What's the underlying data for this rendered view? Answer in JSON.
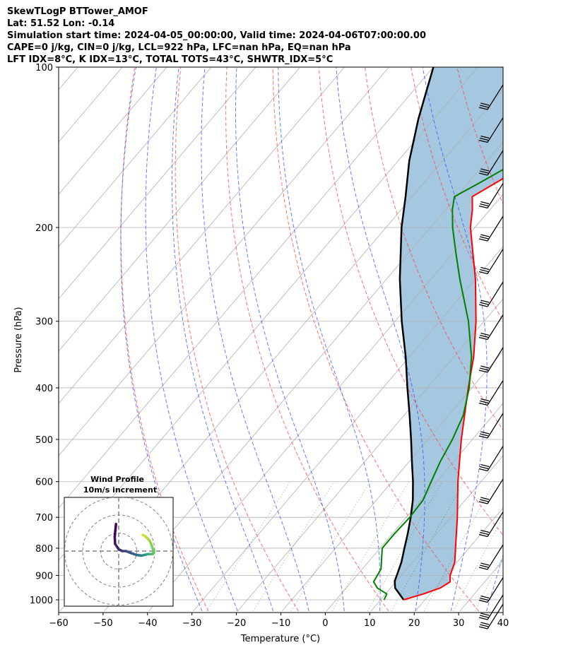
{
  "header": {
    "line1": "SkewTLogP BTTower_AMOF",
    "line2": "Lat: 51.52   Lon: -0.14",
    "line3": "Simulation start time: 2024-04-05_00:00:00, Valid time: 2024-04-06T07:00:00.00",
    "line4": "CAPE=0 j/kg, CIN=0 j/kg, LCL=922 hPa, LFC=nan hPa, EQ=nan hPa",
    "line5": "LFT IDX=8°C, K IDX=13°C, TOTAL TOTS=43°C, SHWTR_IDX=5°C"
  },
  "chart_data": [
    {
      "type": "line",
      "subtype": "skew-T log-P",
      "xlabel": "Temperature (°C)",
      "ylabel": "Pressure (hPa)",
      "x_ticks": [
        -60,
        -50,
        -40,
        -30,
        -20,
        -10,
        0,
        10,
        20,
        30,
        40
      ],
      "y_ticks": [
        100,
        200,
        300,
        400,
        500,
        600,
        700,
        800,
        900,
        1000
      ],
      "xlim": [
        -60,
        40
      ],
      "ylim": [
        1050,
        100
      ],
      "y_scale": "log",
      "grid": true,
      "series": [
        {
          "role": "temperature",
          "color": "#ff0000",
          "points": [
            [
              1000,
              15.2
            ],
            [
              975,
              18.5
            ],
            [
              950,
              21.2
            ],
            [
              925,
              22.2
            ],
            [
              900,
              21.0
            ],
            [
              850,
              19.5
            ],
            [
              800,
              17.0
            ],
            [
              700,
              11.5
            ],
            [
              600,
              4.8
            ],
            [
              500,
              -2.5
            ],
            [
              400,
              -10.8
            ],
            [
              350,
              -15.5
            ],
            [
              300,
              -21.8
            ],
            [
              250,
              -30.0
            ],
            [
              200,
              -41.0
            ],
            [
              185,
              -44.0
            ],
            [
              175,
              -46.5
            ],
            [
              160,
              -42.5
            ],
            [
              150,
              -40.2
            ],
            [
              140,
              -38.5
            ],
            [
              130,
              -37.0
            ],
            [
              125,
              -35.8
            ],
            [
              120,
              -34.0
            ],
            [
              110,
              -30.5
            ],
            [
              100,
              -27.3
            ]
          ]
        },
        {
          "role": "dewpoint",
          "color": "#008000",
          "points": [
            [
              1000,
              10.8
            ],
            [
              975,
              10.3
            ],
            [
              950,
              7.0
            ],
            [
              925,
              5.0
            ],
            [
              900,
              4.6
            ],
            [
              875,
              4.2
            ],
            [
              850,
              3.0
            ],
            [
              800,
              0.5
            ],
            [
              750,
              0.5
            ],
            [
              700,
              0.8
            ],
            [
              650,
              0.5
            ],
            [
              600,
              -1.2
            ],
            [
              550,
              -3.0
            ],
            [
              500,
              -4.5
            ],
            [
              450,
              -6.7
            ],
            [
              400,
              -10.6
            ],
            [
              350,
              -16.0
            ],
            [
              300,
              -23.5
            ],
            [
              250,
              -33.5
            ],
            [
              225,
              -39.0
            ],
            [
              200,
              -45.0
            ],
            [
              185,
              -48.5
            ],
            [
              175,
              -50.5
            ],
            [
              165,
              -47.5
            ],
            [
              155,
              -44.5
            ],
            [
              145,
              -44.0
            ],
            [
              135,
              -44.7
            ],
            [
              125,
              -43.7
            ],
            [
              115,
              -39.5
            ],
            [
              100,
              -31.5
            ]
          ]
        },
        {
          "role": "parcel",
          "color": "#000000",
          "points": [
            [
              1000,
              15.2
            ],
            [
              950,
              11.0
            ],
            [
              922,
              9.6
            ],
            [
              900,
              9.0
            ],
            [
              850,
              7.5
            ],
            [
              800,
              5.5
            ],
            [
              750,
              3.4
            ],
            [
              700,
              1.0
            ],
            [
              650,
              -1.8
            ],
            [
              600,
              -5.3
            ],
            [
              550,
              -9.4
            ],
            [
              500,
              -13.8
            ],
            [
              450,
              -18.8
            ],
            [
              400,
              -24.5
            ],
            [
              350,
              -30.8
            ],
            [
              300,
              -38.5
            ],
            [
              250,
              -47.0
            ],
            [
              200,
              -56.5
            ],
            [
              175,
              -61.5
            ],
            [
              150,
              -67.5
            ],
            [
              125,
              -73.5
            ],
            [
              100,
              -80.0
            ]
          ]
        }
      ],
      "shaded_region": {
        "between": [
          "temperature",
          "parcel"
        ],
        "color": "#a0c4de"
      }
    },
    {
      "type": "line",
      "subtype": "hodograph",
      "title": "Wind Profile",
      "subtitle": "10m/s increment",
      "rings_ms": [
        10,
        20,
        30
      ],
      "points": [
        [
          -1.5,
          -15
        ],
        [
          -2.2,
          -8
        ],
        [
          -2.0,
          -4
        ],
        [
          0,
          -1
        ],
        [
          2,
          0
        ],
        [
          4,
          0
        ],
        [
          6,
          0.8
        ],
        [
          8,
          1.5
        ],
        [
          10,
          2.2
        ],
        [
          12,
          2.4
        ],
        [
          13,
          2.5
        ],
        [
          14,
          2.2
        ],
        [
          15,
          2.0
        ],
        [
          16,
          1.7
        ],
        [
          17,
          1.7
        ],
        [
          18,
          1.6
        ],
        [
          19,
          1.6
        ],
        [
          19.6,
          0
        ],
        [
          18.6,
          -2
        ],
        [
          18,
          -4
        ],
        [
          17,
          -6
        ],
        [
          15.5,
          -7.5
        ],
        [
          14.6,
          -8.3
        ],
        [
          13.4,
          -9
        ]
      ]
    }
  ]
}
